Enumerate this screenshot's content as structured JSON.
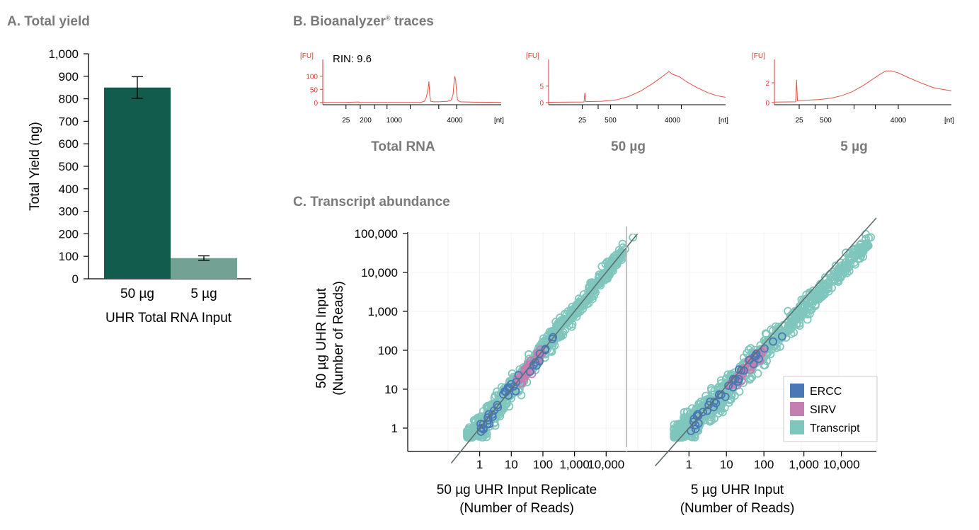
{
  "panels": {
    "a_title": "A. Total yield",
    "b_title": "B. Bioanalyzer",
    "b_title_mark": "®",
    "b_title_rest": " traces",
    "c_title": "C. Transcript abundance"
  },
  "colors": {
    "bar_50ug": "#115c4c",
    "bar_5ug": "#73a294",
    "trace": "#e0534a",
    "axis_red": "#d93a30",
    "ercc": "#4b78b4",
    "sirv": "#c27fb0",
    "transcript": "#7fc6bd",
    "fit_line": "#5e6f70"
  },
  "chart_data": [
    {
      "id": "total_yield",
      "type": "bar",
      "categories": [
        "50 µg",
        "5 µg"
      ],
      "values": [
        850,
        92
      ],
      "errors": [
        48,
        10
      ],
      "ylabel": "Total Yield (ng)",
      "xlabel": "UHR Total RNA Input",
      "ylim": [
        0,
        1000
      ],
      "yticks": [
        0,
        100,
        200,
        300,
        400,
        500,
        600,
        700,
        800,
        900,
        1000
      ],
      "ytick_labels": [
        "0",
        "100",
        "200",
        "300",
        "400",
        "500",
        "600",
        "700",
        "800",
        "900",
        "1,000"
      ]
    },
    {
      "id": "bioanalyzer",
      "type": "line",
      "y_unit": "[FU]",
      "x_unit": "[nt]",
      "traces": [
        {
          "label": "Total RNA",
          "annotation": "RIN: 9.6",
          "xtick_labels": [
            "25",
            "200",
            "1000",
            "4000"
          ],
          "yticks": [
            0,
            50,
            100
          ],
          "ylim": [
            0,
            150
          ],
          "points": [
            [
              0,
              0.5
            ],
            [
              0.12,
              0.6
            ],
            [
              0.2,
              2.5
            ],
            [
              0.21,
              0.8
            ],
            [
              0.35,
              0.7
            ],
            [
              0.5,
              0.9
            ],
            [
              0.55,
              1.2
            ],
            [
              0.57,
              5
            ],
            [
              0.58,
              20
            ],
            [
              0.59,
              50
            ],
            [
              0.595,
              80
            ],
            [
              0.6,
              25
            ],
            [
              0.605,
              5
            ],
            [
              0.62,
              3
            ],
            [
              0.66,
              3.5
            ],
            [
              0.7,
              5
            ],
            [
              0.72,
              10
            ],
            [
              0.73,
              30
            ],
            [
              0.735,
              70
            ],
            [
              0.74,
              100
            ],
            [
              0.745,
              85
            ],
            [
              0.75,
              40
            ],
            [
              0.755,
              10
            ],
            [
              0.77,
              3
            ],
            [
              0.85,
              1.5
            ],
            [
              1.0,
              1
            ]
          ]
        },
        {
          "label": "50 µg",
          "xtick_labels": [
            "25",
            "500",
            "4000"
          ],
          "yticks": [
            0,
            5
          ],
          "ylim": [
            0,
            12
          ],
          "points": [
            [
              0,
              0.1
            ],
            [
              0.2,
              0.2
            ],
            [
              0.205,
              3
            ],
            [
              0.21,
              0.3
            ],
            [
              0.3,
              0.4
            ],
            [
              0.38,
              0.8
            ],
            [
              0.45,
              1.8
            ],
            [
              0.52,
              3.5
            ],
            [
              0.58,
              5.5
            ],
            [
              0.62,
              7
            ],
            [
              0.66,
              8.6
            ],
            [
              0.68,
              9.4
            ],
            [
              0.7,
              8.6
            ],
            [
              0.74,
              7.8
            ],
            [
              0.78,
              6.3
            ],
            [
              0.84,
              4.5
            ],
            [
              0.9,
              3
            ],
            [
              0.95,
              2.1
            ],
            [
              1.0,
              1.6
            ]
          ]
        },
        {
          "label": "5 µg",
          "xtick_labels": [
            "25",
            "500",
            "4000"
          ],
          "yticks": [
            0,
            2
          ],
          "ylim": [
            0,
            4
          ],
          "points": [
            [
              0,
              0.05
            ],
            [
              0.12,
              0.08
            ],
            [
              0.125,
              2.3
            ],
            [
              0.13,
              0.2
            ],
            [
              0.25,
              0.3
            ],
            [
              0.32,
              0.45
            ],
            [
              0.38,
              0.7
            ],
            [
              0.44,
              1.1
            ],
            [
              0.5,
              1.7
            ],
            [
              0.55,
              2.3
            ],
            [
              0.6,
              2.9
            ],
            [
              0.63,
              3.2
            ],
            [
              0.66,
              3.2
            ],
            [
              0.7,
              3
            ],
            [
              0.76,
              2.5
            ],
            [
              0.84,
              1.9
            ],
            [
              0.9,
              1.5
            ],
            [
              0.96,
              1.3
            ],
            [
              1.0,
              1.2
            ]
          ]
        }
      ]
    },
    {
      "id": "transcript_abundance",
      "type": "scatter",
      "ylabel_line1": "50 µg UHR Input",
      "ylabel_line2": "(Number of Reads)",
      "ytick_labels": [
        "1",
        "10",
        "100",
        "1,000",
        "10,000",
        "100,000"
      ],
      "xtick_labels": [
        "1",
        "10",
        "100",
        "1,000",
        "10,000"
      ],
      "log_scale": true,
      "panels": [
        {
          "xlabel_line1": "50 µg UHR Input Replicate",
          "xlabel_line2": "(Number of Reads)"
        },
        {
          "xlabel_line1": "5 µg UHR Input",
          "xlabel_line2": "(Number of Reads)"
        }
      ],
      "legend": [
        "ERCC",
        "SIRV",
        "Transcript"
      ],
      "legend_position": "bottom-right"
    }
  ]
}
